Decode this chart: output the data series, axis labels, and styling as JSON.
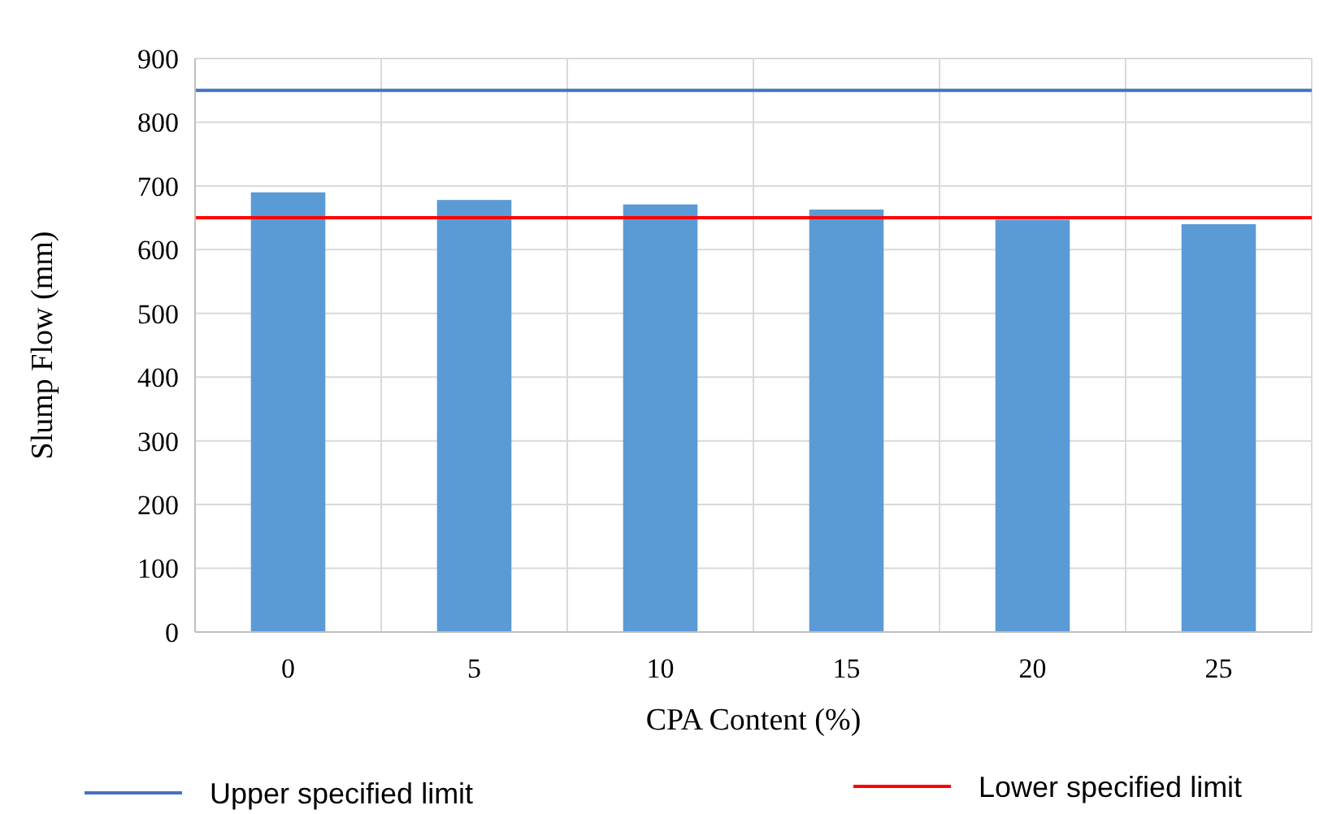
{
  "chart_data": {
    "type": "bar",
    "xlabel": "CPA Content (%)",
    "ylabel": "Slump Flow (mm)",
    "categories": [
      "0",
      "5",
      "10",
      "15",
      "20",
      "25"
    ],
    "values": [
      690,
      678,
      671,
      663,
      647,
      640
    ],
    "color": "#5b9bd5",
    "ylim": [
      0,
      900
    ],
    "yticks": [
      0,
      100,
      200,
      300,
      400,
      500,
      600,
      700,
      800,
      900
    ],
    "grid": true,
    "legend": "bottom",
    "ref_lines": [
      {
        "axis": "y",
        "value": 850,
        "label": "Upper specified limit",
        "color": "#4472c4"
      },
      {
        "axis": "y",
        "value": 650,
        "label": "Lower specified limit",
        "color": "#ff0000"
      }
    ]
  }
}
